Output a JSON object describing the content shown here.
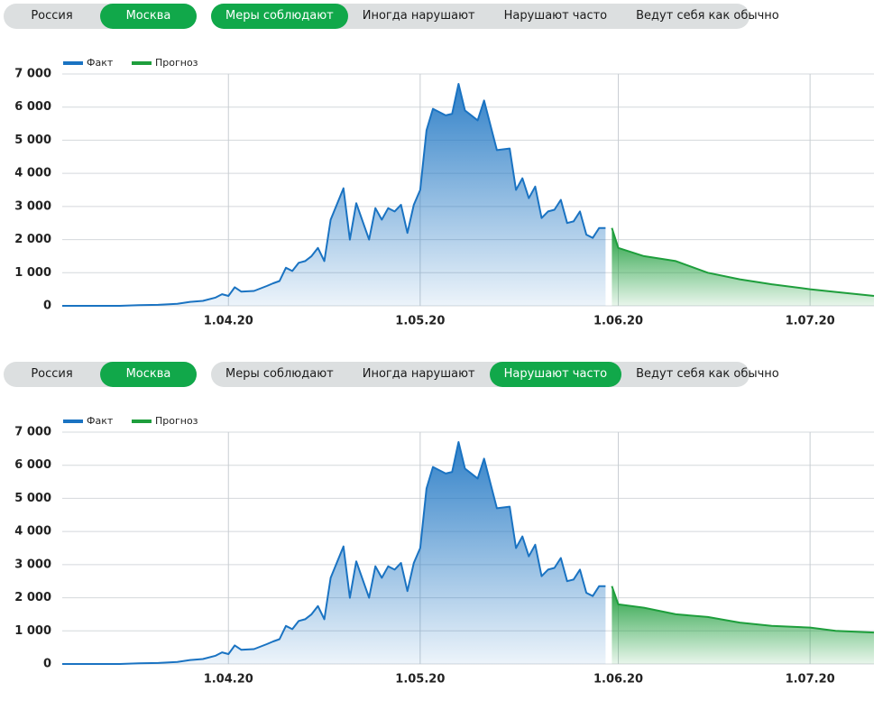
{
  "controls": [
    {
      "regions": [
        {
          "label": "Россия",
          "active": false
        },
        {
          "label": "Москва",
          "active": true
        }
      ],
      "scenarios": [
        {
          "label": "Меры соблюдают",
          "active": true
        },
        {
          "label": "Иногда нарушают",
          "active": false
        },
        {
          "label": "Нарушают часто",
          "active": false
        },
        {
          "label": "Ведут себя как обычно",
          "active": false
        }
      ]
    },
    {
      "regions": [
        {
          "label": "Россия",
          "active": false
        },
        {
          "label": "Москва",
          "active": true
        }
      ],
      "scenarios": [
        {
          "label": "Меры соблюдают",
          "active": false
        },
        {
          "label": "Иногда нарушают",
          "active": false
        },
        {
          "label": "Нарушают часто",
          "active": true
        },
        {
          "label": "Ведут себя как обычно",
          "active": false
        }
      ]
    }
  ],
  "chart_data": [
    {
      "type": "area",
      "grid": true,
      "legend": "top-left",
      "xlim": [
        "2020-03-06",
        "2020-07-11"
      ],
      "ylim": [
        0,
        7000
      ],
      "xticks": [
        {
          "value": "2020-04-01",
          "label": "1.04.20"
        },
        {
          "value": "2020-05-01",
          "label": "1.05.20"
        },
        {
          "value": "2020-06-01",
          "label": "1.06.20"
        },
        {
          "value": "2020-07-01",
          "label": "1.07.20"
        }
      ],
      "yticks": [
        0,
        {
          "value": 1000,
          "label": "1 000"
        },
        {
          "value": 2000,
          "label": "2 000"
        },
        {
          "value": 3000,
          "label": "3 000"
        },
        {
          "value": 4000,
          "label": "4 000"
        },
        {
          "value": 5000,
          "label": "5 000"
        },
        {
          "value": 6000,
          "label": "6 000"
        },
        {
          "value": 7000,
          "label": "7 000"
        }
      ],
      "series": [
        {
          "name": "Факт",
          "color": "#1a73c2",
          "x": [
            "2020-03-06",
            "2020-03-09",
            "2020-03-12",
            "2020-03-15",
            "2020-03-18",
            "2020-03-21",
            "2020-03-24",
            "2020-03-26",
            "2020-03-28",
            "2020-03-30",
            "2020-03-31",
            "2020-04-01",
            "2020-04-02",
            "2020-04-03",
            "2020-04-05",
            "2020-04-07",
            "2020-04-08",
            "2020-04-09",
            "2020-04-10",
            "2020-04-11",
            "2020-04-12",
            "2020-04-13",
            "2020-04-14",
            "2020-04-15",
            "2020-04-16",
            "2020-04-17",
            "2020-04-19",
            "2020-04-20",
            "2020-04-21",
            "2020-04-23",
            "2020-04-24",
            "2020-04-25",
            "2020-04-26",
            "2020-04-27",
            "2020-04-28",
            "2020-04-29",
            "2020-04-30",
            "2020-05-01",
            "2020-05-02",
            "2020-05-03",
            "2020-05-05",
            "2020-05-06",
            "2020-05-07",
            "2020-05-08",
            "2020-05-10",
            "2020-05-11",
            "2020-05-13",
            "2020-05-15",
            "2020-05-16",
            "2020-05-17",
            "2020-05-18",
            "2020-05-19",
            "2020-05-20",
            "2020-05-21",
            "2020-05-22",
            "2020-05-23",
            "2020-05-24",
            "2020-05-25",
            "2020-05-26",
            "2020-05-27",
            "2020-05-28",
            "2020-05-29",
            "2020-05-30"
          ],
          "values": [
            0,
            0,
            0,
            0,
            20,
            30,
            60,
            120,
            150,
            250,
            350,
            300,
            560,
            430,
            450,
            600,
            680,
            750,
            1150,
            1050,
            1300,
            1350,
            1500,
            1750,
            1350,
            2600,
            3550,
            2000,
            3100,
            2000,
            2950,
            2600,
            2950,
            2850,
            3050,
            2200,
            3050,
            3500,
            5300,
            5950,
            5750,
            5800,
            6700,
            5900,
            5600,
            6200,
            4700,
            4750,
            3500,
            3850,
            3250,
            3600,
            2650,
            2850,
            2900,
            3200,
            2500,
            2550,
            2850,
            2150,
            2050,
            2350,
            2350
          ]
        },
        {
          "name": "Прогноз",
          "color": "#1e9e3c",
          "x": [
            "2020-05-31",
            "2020-06-01",
            "2020-06-05",
            "2020-06-10",
            "2020-06-15",
            "2020-06-20",
            "2020-06-25",
            "2020-07-01",
            "2020-07-05",
            "2020-07-11"
          ],
          "values": [
            2350,
            1750,
            1500,
            1350,
            1000,
            800,
            650,
            500,
            420,
            300
          ]
        }
      ]
    },
    {
      "type": "area",
      "grid": true,
      "legend": "top-left",
      "xlim": [
        "2020-03-06",
        "2020-07-11"
      ],
      "ylim": [
        0,
        7000
      ],
      "xticks": [
        {
          "value": "2020-04-01",
          "label": "1.04.20"
        },
        {
          "value": "2020-05-01",
          "label": "1.05.20"
        },
        {
          "value": "2020-06-01",
          "label": "1.06.20"
        },
        {
          "value": "2020-07-01",
          "label": "1.07.20"
        }
      ],
      "yticks": [
        0,
        {
          "value": 1000,
          "label": "1 000"
        },
        {
          "value": 2000,
          "label": "2 000"
        },
        {
          "value": 3000,
          "label": "3 000"
        },
        {
          "value": 4000,
          "label": "4 000"
        },
        {
          "value": 5000,
          "label": "5 000"
        },
        {
          "value": 6000,
          "label": "6 000"
        },
        {
          "value": 7000,
          "label": "7 000"
        }
      ],
      "series": [
        {
          "name": "Факт",
          "color": "#1a73c2",
          "x": [
            "2020-03-06",
            "2020-03-09",
            "2020-03-12",
            "2020-03-15",
            "2020-03-18",
            "2020-03-21",
            "2020-03-24",
            "2020-03-26",
            "2020-03-28",
            "2020-03-30",
            "2020-03-31",
            "2020-04-01",
            "2020-04-02",
            "2020-04-03",
            "2020-04-05",
            "2020-04-07",
            "2020-04-08",
            "2020-04-09",
            "2020-04-10",
            "2020-04-11",
            "2020-04-12",
            "2020-04-13",
            "2020-04-14",
            "2020-04-15",
            "2020-04-16",
            "2020-04-17",
            "2020-04-19",
            "2020-04-20",
            "2020-04-21",
            "2020-04-23",
            "2020-04-24",
            "2020-04-25",
            "2020-04-26",
            "2020-04-27",
            "2020-04-28",
            "2020-04-29",
            "2020-04-30",
            "2020-05-01",
            "2020-05-02",
            "2020-05-03",
            "2020-05-05",
            "2020-05-06",
            "2020-05-07",
            "2020-05-08",
            "2020-05-10",
            "2020-05-11",
            "2020-05-13",
            "2020-05-15",
            "2020-05-16",
            "2020-05-17",
            "2020-05-18",
            "2020-05-19",
            "2020-05-20",
            "2020-05-21",
            "2020-05-22",
            "2020-05-23",
            "2020-05-24",
            "2020-05-25",
            "2020-05-26",
            "2020-05-27",
            "2020-05-28",
            "2020-05-29",
            "2020-05-30"
          ],
          "values": [
            0,
            0,
            0,
            0,
            20,
            30,
            60,
            120,
            150,
            250,
            350,
            300,
            560,
            430,
            450,
            600,
            680,
            750,
            1150,
            1050,
            1300,
            1350,
            1500,
            1750,
            1350,
            2600,
            3550,
            2000,
            3100,
            2000,
            2950,
            2600,
            2950,
            2850,
            3050,
            2200,
            3050,
            3500,
            5300,
            5950,
            5750,
            5800,
            6700,
            5900,
            5600,
            6200,
            4700,
            4750,
            3500,
            3850,
            3250,
            3600,
            2650,
            2850,
            2900,
            3200,
            2500,
            2550,
            2850,
            2150,
            2050,
            2350,
            2350
          ]
        },
        {
          "name": "Прогноз",
          "color": "#1e9e3c",
          "x": [
            "2020-05-31",
            "2020-06-01",
            "2020-06-05",
            "2020-06-10",
            "2020-06-15",
            "2020-06-20",
            "2020-06-25",
            "2020-07-01",
            "2020-07-05",
            "2020-07-11"
          ],
          "values": [
            2350,
            1800,
            1700,
            1500,
            1420,
            1250,
            1150,
            1100,
            1000,
            950
          ]
        }
      ]
    }
  ]
}
